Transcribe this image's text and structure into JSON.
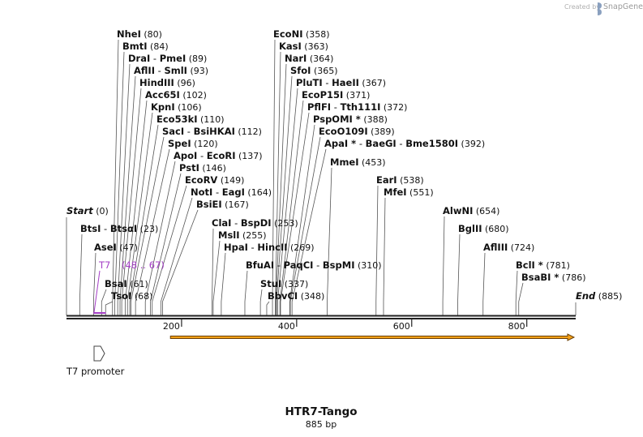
{
  "credit": {
    "prefix": "Created by",
    "brand": "SnapGene"
  },
  "plasmid": {
    "name": "HTR7-Tango",
    "length_label": "885 bp",
    "length": 885
  },
  "axis": {
    "ticks": [
      200,
      400,
      600,
      800
    ]
  },
  "colors": {
    "backbone": "#222222",
    "primer": "#a43fc6",
    "arrow": "#f3a21a",
    "arrow_outline": "#6b3d00"
  },
  "feature_arrow": {
    "start": 180,
    "end": 885
  },
  "features": [
    {
      "name": "T7 promoter",
      "start": 48,
      "end": 67,
      "icon": "promoter-arrow-icon"
    }
  ],
  "primer": {
    "name": "T7",
    "range": "(48 .. 67)",
    "start": 48,
    "end": 67
  },
  "sites": [
    {
      "parts": [
        "NheI"
      ],
      "pos": "(80)",
      "cut": 80
    },
    {
      "parts": [
        "BmtI"
      ],
      "pos": "(84)",
      "cut": 84
    },
    {
      "parts": [
        "DraI",
        "PmeI"
      ],
      "pos": "(89)",
      "cut": 89
    },
    {
      "parts": [
        "AflII",
        "SmlI"
      ],
      "pos": "(93)",
      "cut": 93
    },
    {
      "parts": [
        "HindIII"
      ],
      "pos": "(96)",
      "cut": 96
    },
    {
      "parts": [
        "Acc65I"
      ],
      "pos": "(102)",
      "cut": 102
    },
    {
      "parts": [
        "KpnI"
      ],
      "pos": "(106)",
      "cut": 106
    },
    {
      "parts": [
        "Eco53kI"
      ],
      "pos": "(110)",
      "cut": 110
    },
    {
      "parts": [
        "SacI",
        "BsiHKAI"
      ],
      "pos": "(112)",
      "cut": 112
    },
    {
      "parts": [
        "SpeI"
      ],
      "pos": "(120)",
      "cut": 120
    },
    {
      "parts": [
        "ApoI",
        "EcoRI"
      ],
      "pos": "(137)",
      "cut": 137
    },
    {
      "parts": [
        "PstI"
      ],
      "pos": "(146)",
      "cut": 146
    },
    {
      "parts": [
        "EcoRV"
      ],
      "pos": "(149)",
      "cut": 149
    },
    {
      "parts": [
        "NotI",
        "EagI"
      ],
      "pos": "(164)",
      "cut": 164
    },
    {
      "parts": [
        "BsiEI"
      ],
      "pos": "(167)",
      "cut": 167
    },
    {
      "parts": [
        "Start"
      ],
      "pos": "(0)",
      "cut": 0,
      "italic": true
    },
    {
      "parts": [
        "BtsI",
        "BtsαI"
      ],
      "pos": "(23)",
      "cut": 23
    },
    {
      "parts": [
        "AseI"
      ],
      "pos": "(47)",
      "cut": 47
    },
    {
      "parts": [
        "BsaI"
      ],
      "pos": "(61)",
      "cut": 61
    },
    {
      "parts": [
        "TsoI"
      ],
      "pos": "(68)",
      "cut": 68
    },
    {
      "parts": [
        "EcoNI"
      ],
      "pos": "(358)",
      "cut": 358
    },
    {
      "parts": [
        "KasI"
      ],
      "pos": "(363)",
      "cut": 363
    },
    {
      "parts": [
        "NarI"
      ],
      "pos": "(364)",
      "cut": 364
    },
    {
      "parts": [
        "SfoI"
      ],
      "pos": "(365)",
      "cut": 365
    },
    {
      "parts": [
        "PluTI",
        "HaeII"
      ],
      "pos": "(367)",
      "cut": 367
    },
    {
      "parts": [
        "EcoP15I"
      ],
      "pos": "(371)",
      "cut": 371
    },
    {
      "parts": [
        "PflFI",
        "Tth111I"
      ],
      "pos": "(372)",
      "cut": 372
    },
    {
      "parts": [
        "PspOMI *"
      ],
      "pos": "(388)",
      "cut": 388
    },
    {
      "parts": [
        "EcoO109I"
      ],
      "pos": "(389)",
      "cut": 389
    },
    {
      "parts": [
        "ApaI *",
        "BaeGI",
        "Bme1580I"
      ],
      "pos": "(392)",
      "cut": 392
    },
    {
      "parts": [
        "MmeI"
      ],
      "pos": "(453)",
      "cut": 453
    },
    {
      "parts": [
        "ClaI",
        "BspDI"
      ],
      "pos": "(253)",
      "cut": 253
    },
    {
      "parts": [
        "MslI"
      ],
      "pos": "(255)",
      "cut": 255
    },
    {
      "parts": [
        "HpaI",
        "HincII"
      ],
      "pos": "(269)",
      "cut": 269
    },
    {
      "parts": [
        "BfuAI",
        "PaqCI",
        "BspMI"
      ],
      "pos": "(310)",
      "cut": 310
    },
    {
      "parts": [
        "StuI"
      ],
      "pos": "(337)",
      "cut": 337
    },
    {
      "parts": [
        "BbvCI"
      ],
      "pos": "(348)",
      "cut": 348
    },
    {
      "parts": [
        "EarI"
      ],
      "pos": "(538)",
      "cut": 538
    },
    {
      "parts": [
        "MfeI"
      ],
      "pos": "(551)",
      "cut": 551
    },
    {
      "parts": [
        "AlwNI"
      ],
      "pos": "(654)",
      "cut": 654
    },
    {
      "parts": [
        "BglII"
      ],
      "pos": "(680)",
      "cut": 680
    },
    {
      "parts": [
        "AflIII"
      ],
      "pos": "(724)",
      "cut": 724
    },
    {
      "parts": [
        "BclI *"
      ],
      "pos": "(781)",
      "cut": 781
    },
    {
      "parts": [
        "BsaBI *"
      ],
      "pos": "(786)",
      "cut": 786
    },
    {
      "parts": [
        "End"
      ],
      "pos": "(885)",
      "cut": 885,
      "italic": true
    }
  ]
}
